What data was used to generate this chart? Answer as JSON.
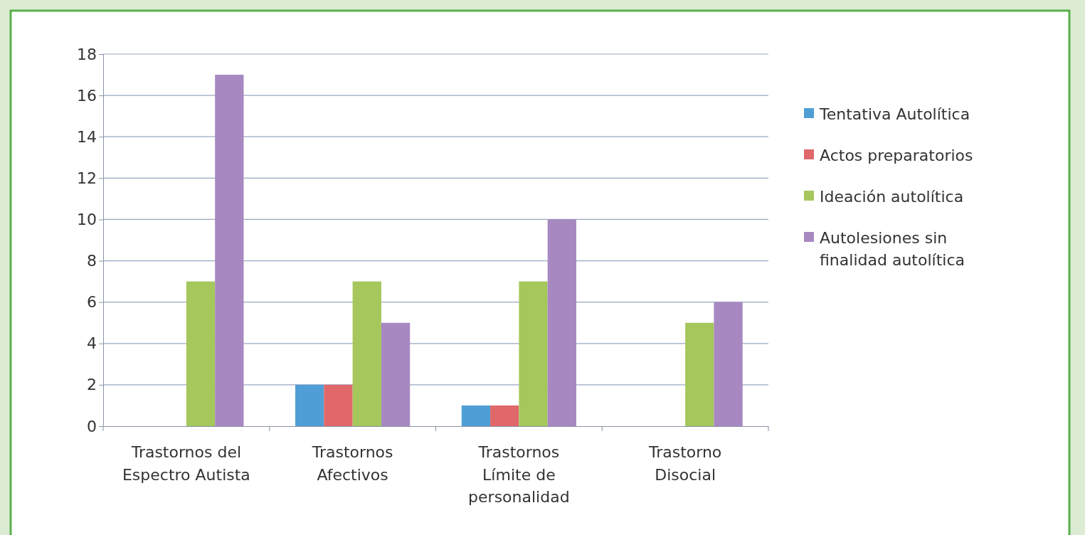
{
  "chart_data": {
    "type": "bar",
    "categories": [
      "Trastornos del Espectro Autista",
      "Trastornos Afectivos",
      "Trastornos Límite de personalidad",
      "Trastorno Disocial"
    ],
    "series": [
      {
        "name": "Tentativa Autolítica",
        "color": "#4f9fd6",
        "values": [
          0,
          2,
          1,
          0
        ]
      },
      {
        "name": "Actos preparatorios",
        "color": "#e0676a",
        "values": [
          0,
          2,
          1,
          0
        ]
      },
      {
        "name": "Ideación autolítica",
        "color": "#a5c75c",
        "values": [
          7,
          7,
          7,
          5
        ]
      },
      {
        "name": "Autolesiones sin finalidad autolítica",
        "color": "#a888c1",
        "values": [
          17,
          5,
          10,
          6
        ]
      }
    ],
    "ylim": [
      0,
      18
    ],
    "yticks": [
      0,
      2,
      4,
      6,
      8,
      10,
      12,
      14,
      16,
      18
    ],
    "grid": "y",
    "legend": "right"
  }
}
